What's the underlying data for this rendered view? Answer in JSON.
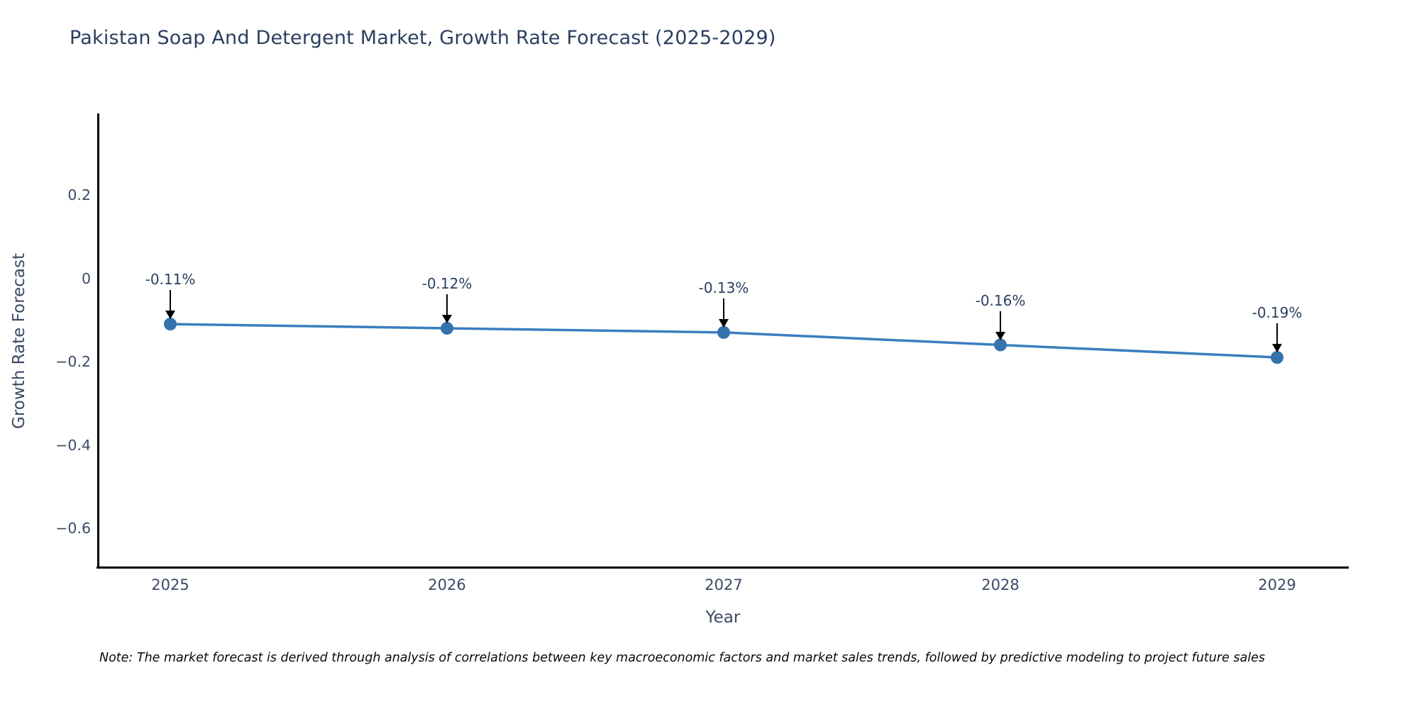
{
  "title": "Pakistan Soap And Detergent Market, Growth Rate Forecast (2025-2029)",
  "note": "Note: The market forecast is derived through analysis of correlations between key macroeconomic factors and market sales trends, followed by predictive modeling to project future sales",
  "colors": {
    "line": "#3a7ebf",
    "marker": "#3572ae",
    "axis": "#000000",
    "title_text": "#2a3f5f",
    "tick_text": "#3b4a66",
    "arrow": "#000000"
  },
  "chart_data": {
    "type": "line",
    "title": "Pakistan Soap And Detergent Market, Growth Rate Forecast (2025-2029)",
    "xlabel": "Year",
    "ylabel": "Growth Rate Forecast",
    "x": [
      2025,
      2026,
      2027,
      2028,
      2029
    ],
    "series": [
      {
        "name": "Growth Rate Forecast",
        "values": [
          -0.11,
          -0.12,
          -0.13,
          -0.16,
          -0.19
        ]
      }
    ],
    "point_labels": [
      "-0.11%",
      "-0.12%",
      "-0.13%",
      "-0.16%",
      "-0.19%"
    ],
    "xticks": [
      "2025",
      "2026",
      "2027",
      "2028",
      "2029"
    ],
    "yticks": {
      "labels": [
        "0.2",
        "0",
        "−0.2",
        "−0.4",
        "−0.6"
      ],
      "values": [
        0.2,
        0,
        -0.2,
        -0.4,
        -0.6
      ]
    },
    "ylim": [
      -0.69,
      0.4
    ],
    "grid": false,
    "legend": false
  }
}
